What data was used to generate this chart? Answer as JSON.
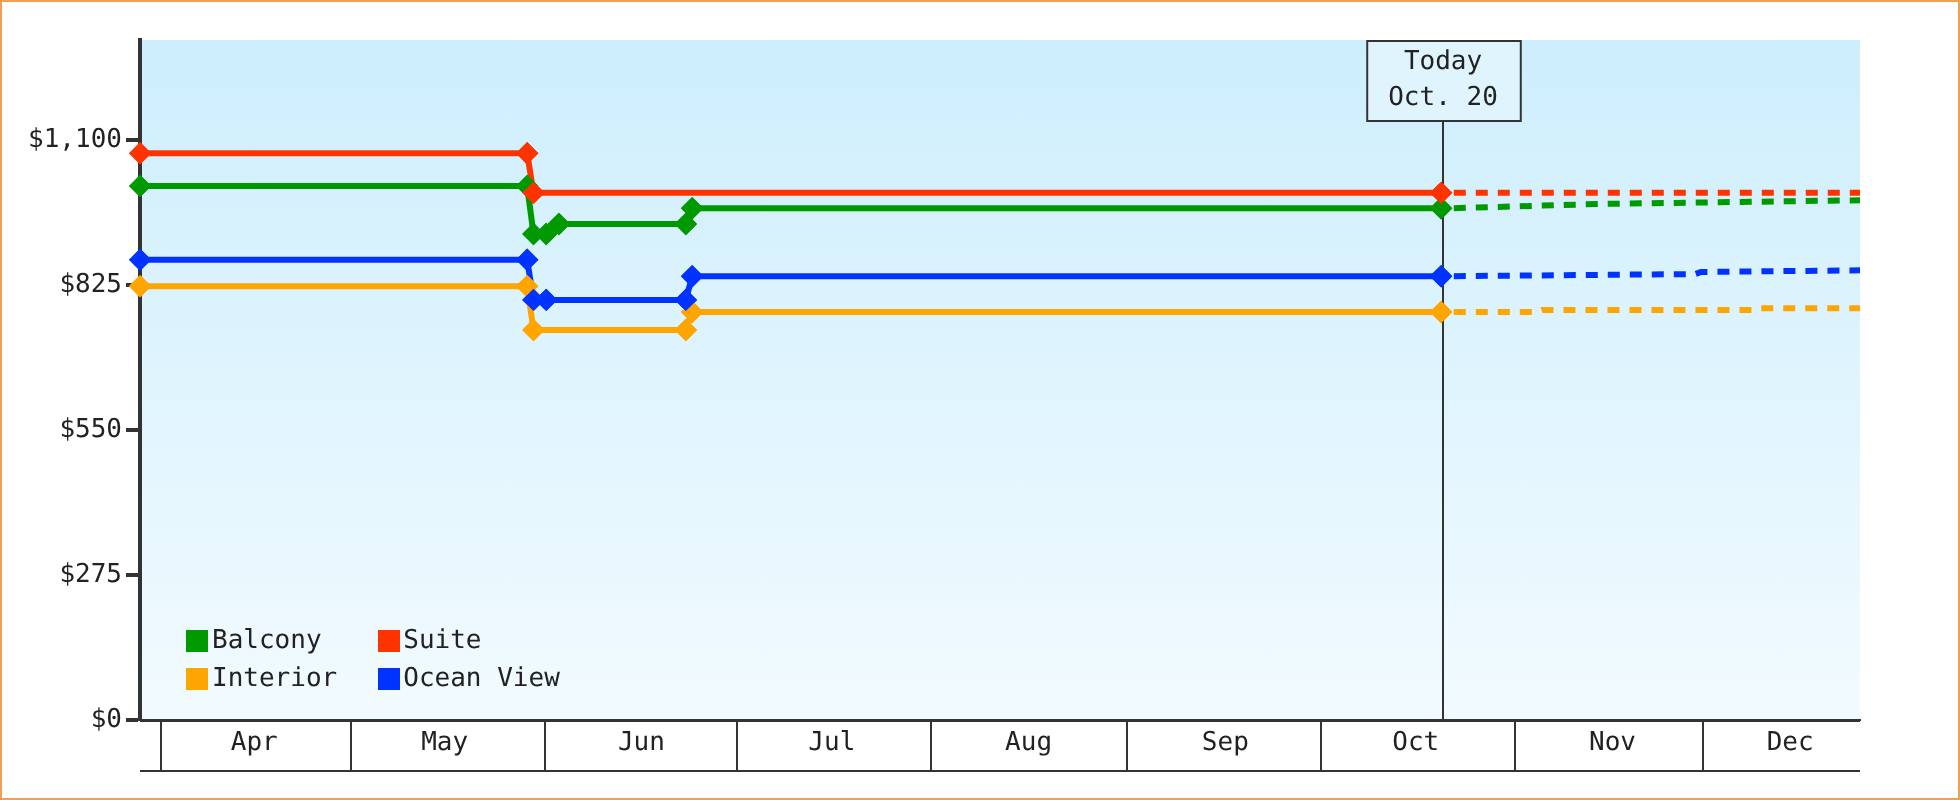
{
  "chart_data": {
    "type": "line",
    "xlim": [
      "--03-29",
      "--12-25"
    ],
    "xticks": [
      {
        "value": "--04-16",
        "label": "Apr"
      },
      {
        "value": "--05-16",
        "label": "May"
      },
      {
        "value": "--06-16",
        "label": "Jun"
      },
      {
        "value": "--07-16",
        "label": "Jul"
      },
      {
        "value": "--08-16",
        "label": "Aug"
      },
      {
        "value": "--09-16",
        "label": "Sep"
      },
      {
        "value": "--10-16",
        "label": "Oct"
      },
      {
        "value": "--11-16",
        "label": "Nov"
      },
      {
        "value": "--12-14",
        "label": "Dec"
      }
    ],
    "ylim": [
      0,
      1290
    ],
    "yticks": [
      {
        "value": 0,
        "label": "$0"
      },
      {
        "value": 275,
        "label": "$275"
      },
      {
        "value": 550,
        "label": "$550"
      },
      {
        "value": 825,
        "label": "$825"
      },
      {
        "value": 1100,
        "label": "$1,100"
      }
    ],
    "grid": false,
    "legend": "bottom left",
    "marker": "diamond",
    "line_style": "solid",
    "series": [
      {
        "name": "Balcony",
        "color": "#009900",
        "x": [
          "--03-29",
          "--05-29",
          "--05-30",
          "--06-01",
          "--06-03",
          "--06-23",
          "--06-24",
          "--10-20"
        ],
        "values": [
          1013,
          1013,
          922,
          922,
          941,
          941,
          971,
          971
        ]
      },
      {
        "name": "Suite",
        "color": "#ff3300",
        "x": [
          "--03-29",
          "--05-29",
          "--05-30",
          "--10-20"
        ],
        "values": [
          1075,
          1075,
          1000,
          1000
        ]
      },
      {
        "name": "Interior",
        "color": "#ffa500",
        "x": [
          "--03-29",
          "--05-29",
          "--05-30",
          "--06-23",
          "--06-24",
          "--10-20"
        ],
        "values": [
          823,
          823,
          740,
          740,
          774,
          774
        ]
      },
      {
        "name": "Ocean View",
        "color": "#0033ff",
        "x": [
          "--03-29",
          "--05-29",
          "--05-30",
          "--06-01",
          "--06-23",
          "--06-24",
          "--10-20"
        ],
        "values": [
          873,
          873,
          797,
          797,
          797,
          842,
          842
        ]
      },
      {
        "color": "#009900",
        "marker": "none",
        "line_style": "dashed",
        "x": [
          "--10-22",
          "--11-14",
          "--12-25"
        ],
        "values": [
          971,
          979,
          986
        ]
      },
      {
        "color": "#ff3300",
        "marker": "none",
        "line_style": "dashed",
        "x": [
          "--10-22",
          "--12-25"
        ],
        "values": [
          1000,
          1000
        ]
      },
      {
        "color": "#ffa500",
        "marker": "none",
        "line_style": "dashed",
        "x": [
          "--10-22",
          "--11-04",
          "--11-05",
          "--12-08",
          "--12-09",
          "--12-25"
        ],
        "values": [
          774,
          774,
          778,
          778,
          781,
          781
        ]
      },
      {
        "color": "#0033ff",
        "marker": "none",
        "line_style": "dashed",
        "x": [
          "--10-22",
          "--11-29",
          "--11-30",
          "--12-25"
        ],
        "values": [
          842,
          846,
          850,
          853
        ]
      }
    ],
    "ref_lines": [
      {
        "axis": "x",
        "value": "--10-20",
        "label": "Today\nOct. 20",
        "color": "#333333"
      }
    ]
  }
}
